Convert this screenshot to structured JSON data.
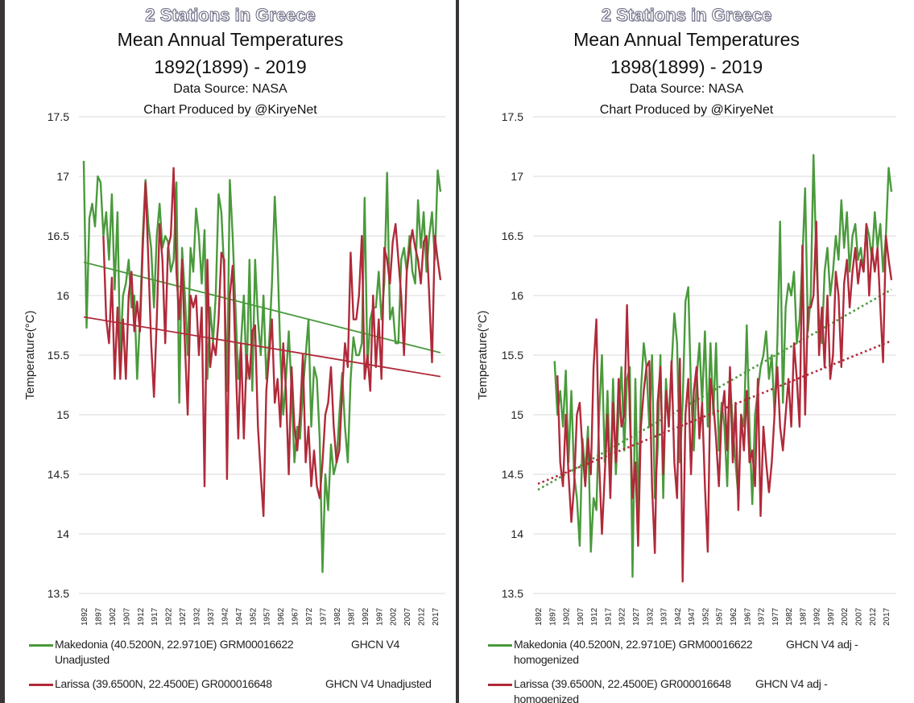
{
  "colors": {
    "makedonia": "#4a9a3c",
    "larissa": "#b02a3a",
    "grid": "#d9d9d9"
  },
  "chart_data": [
    {
      "type": "line",
      "title": "2 Stations in Greece",
      "subtitle_lines": [
        "Mean Annual Temperatures",
        "1892(1899) - 2019",
        "Data Source: NASA",
        "Chart Produced by @KiryeNet"
      ],
      "xlabel": "",
      "ylabel": "Temperature(°C)",
      "ylim": [
        13.5,
        17.5
      ],
      "yticks": [
        "13.5",
        "14",
        "14.5",
        "15",
        "15.5",
        "16",
        "16.5",
        "17",
        "17.5"
      ],
      "xticks": [
        "1892",
        "1897",
        "1902",
        "1907",
        "1912",
        "1917",
        "1922",
        "1927",
        "1932",
        "1937",
        "1942",
        "1947",
        "1952",
        "1957",
        "1962",
        "1967",
        "1972",
        "1977",
        "1982",
        "1987",
        "1992",
        "1997",
        "2002",
        "2007",
        "2012",
        "2017"
      ],
      "grid": true,
      "legend": "bottom",
      "x_range": [
        1892,
        2019
      ],
      "series": [
        {
          "name": "Makedonia (40.5200N, 22.9710E) GRM00016622",
          "name_suffix": "GHCN V4",
          "name_line2": "Unadjusted",
          "color": "#4a9a3c",
          "start_year": 1892,
          "values": [
            17.13,
            15.73,
            16.65,
            16.77,
            16.58,
            17.0,
            16.95,
            16.5,
            16.7,
            16.3,
            16.85,
            16.05,
            16.7,
            15.5,
            16.0,
            16.1,
            16.3,
            15.9,
            16.0,
            15.3,
            15.8,
            16.5,
            16.97,
            16.6,
            16.4,
            15.9,
            16.5,
            16.77,
            16.4,
            16.5,
            16.45,
            16.2,
            16.3,
            16.95,
            15.1,
            16.4,
            16.0,
            15.5,
            16.4,
            16.2,
            16.73,
            16.5,
            16.1,
            16.55,
            15.3,
            15.9,
            15.6,
            16.0,
            16.85,
            16.7,
            16.2,
            15.2,
            16.97,
            16.5,
            15.9,
            15.3,
            15.6,
            16.0,
            15.3,
            16.3,
            15.2,
            16.3,
            15.8,
            15.5,
            16.0,
            15.3,
            15.6,
            16.1,
            16.83,
            16.3,
            15.5,
            15.0,
            15.3,
            15.7,
            15.2,
            14.6,
            14.9,
            14.8,
            15.2,
            15.5,
            15.8,
            14.9,
            15.4,
            15.3,
            14.8,
            13.68,
            14.5,
            14.2,
            14.75,
            14.5,
            14.6,
            15.0,
            15.35,
            14.9,
            14.6,
            15.3,
            15.65,
            15.5,
            15.5,
            15.6,
            16.82,
            15.4,
            15.8,
            15.9,
            15.9,
            16.2,
            15.8,
            16.1,
            17.03,
            15.8,
            15.9,
            15.6,
            15.6,
            16.3,
            16.4,
            16.2,
            16.5,
            16.2,
            16.1,
            16.8,
            16.4,
            16.7,
            16.2,
            16.5,
            16.7,
            16.3,
            17.05,
            16.87
          ],
          "trend": {
            "style": "solid",
            "start": 16.28,
            "end": 15.52
          }
        },
        {
          "name": "Larissa (39.6500N, 22.4500E) GR000016648",
          "name_suffix": "GHCN V4 Unadjusted",
          "name_line2": "",
          "color": "#b02a3a",
          "start_year": 1892,
          "values": [
            null,
            null,
            null,
            null,
            null,
            null,
            null,
            16.5,
            15.8,
            15.6,
            16.15,
            15.3,
            15.9,
            15.3,
            15.8,
            15.3,
            16.0,
            16.2,
            15.7,
            15.95,
            15.7,
            16.4,
            16.95,
            16.3,
            15.6,
            15.15,
            15.8,
            16.6,
            16.3,
            15.6,
            16.4,
            16.5,
            17.07,
            16.2,
            15.8,
            16.3,
            15.6,
            15.0,
            16.0,
            15.9,
            16.0,
            15.5,
            15.9,
            14.4,
            16.3,
            15.4,
            15.6,
            15.5,
            15.8,
            16.36,
            16.3,
            14.46,
            16.0,
            16.25,
            15.5,
            14.8,
            15.6,
            14.8,
            15.5,
            15.3,
            15.7,
            15.75,
            14.9,
            14.5,
            14.15,
            15.2,
            15.5,
            15.8,
            15.1,
            15.3,
            14.9,
            15.6,
            15.2,
            14.5,
            15.4,
            14.9,
            14.7,
            15.0,
            15.5,
            14.6,
            14.9,
            14.4,
            14.7,
            14.4,
            14.3,
            14.6,
            15.0,
            15.1,
            15.4,
            14.9,
            14.6,
            14.7,
            15.2,
            15.6,
            15.4,
            16.36,
            15.8,
            15.8,
            16.0,
            16.5,
            15.3,
            15.5,
            15.2,
            16.0,
            15.4,
            15.8,
            15.3,
            16.4,
            16.3,
            16.1,
            16.45,
            16.6,
            16.3,
            16.0,
            15.5,
            16.2,
            16.4,
            16.55,
            16.4,
            16.3,
            16.1,
            16.45,
            16.5,
            16.0,
            15.44,
            16.5,
            16.3,
            16.13
          ],
          "trend": {
            "style": "solid",
            "start": 15.82,
            "end": 15.32
          }
        }
      ]
    },
    {
      "type": "line",
      "title": "2 Stations in Greece",
      "subtitle_lines": [
        "Mean Annual Temperatures",
        "1898(1899) - 2019",
        "Data Source: NASA",
        "Chart Produced by @KiryeNet"
      ],
      "xlabel": "",
      "ylabel": "Temperature(°C)",
      "ylim": [
        13.5,
        17.5
      ],
      "yticks": [
        "13.5",
        "14",
        "14.5",
        "15",
        "15.5",
        "16",
        "16.5",
        "17",
        "17.5"
      ],
      "xticks": [
        "1892",
        "1897",
        "1902",
        "1907",
        "1912",
        "1917",
        "1922",
        "1927",
        "1932",
        "1937",
        "1942",
        "1947",
        "1952",
        "1957",
        "1962",
        "1967",
        "1972",
        "1977",
        "1982",
        "1987",
        "1992",
        "1997",
        "2002",
        "2007",
        "2012",
        "2017"
      ],
      "grid": true,
      "legend": "bottom",
      "x_range": [
        1892,
        2019
      ],
      "series": [
        {
          "name": "Makedonia (40.5200N, 22.9710E) GRM00016622",
          "name_suffix": "GHCN V4 adj -",
          "name_line2": "homogenized",
          "color": "#4a9a3c",
          "start_year": 1892,
          "values": [
            null,
            null,
            null,
            null,
            null,
            null,
            15.45,
            15.0,
            15.2,
            14.9,
            15.37,
            14.6,
            15.2,
            14.5,
            14.3,
            13.9,
            14.8,
            14.5,
            14.9,
            13.85,
            14.3,
            14.2,
            15.0,
            15.5,
            14.6,
            15.2,
            14.4,
            15.3,
            14.5,
            15.0,
            15.4,
            14.7,
            15.3,
            15.4,
            13.64,
            15.3,
            14.2,
            15.2,
            15.6,
            15.4,
            14.9,
            15.5,
            14.3,
            14.7,
            15.5,
            14.3,
            15.3,
            14.9,
            15.4,
            15.85,
            15.6,
            14.6,
            15.1,
            15.95,
            16.07,
            15.2,
            14.7,
            15.3,
            15.6,
            15.1,
            15.7,
            14.9,
            15.6,
            15.0,
            15.6,
            14.7,
            15.1,
            14.9,
            14.4,
            15.3,
            14.9,
            14.6,
            14.3,
            15.0,
            14.9,
            15.75,
            14.9,
            14.25,
            15.0,
            15.2,
            15.4,
            15.5,
            15.7,
            15.3,
            15.5,
            15.0,
            15.6,
            16.62,
            15.1,
            15.9,
            16.1,
            16.0,
            16.2,
            15.6,
            15.8,
            16.3,
            16.9,
            15.7,
            16.0,
            17.18,
            16.3,
            15.8,
            15.6,
            16.2,
            16.4,
            16.0,
            16.2,
            16.5,
            16.3,
            16.8,
            16.4,
            16.7,
            16.2,
            16.5,
            16.6,
            16.3,
            16.4,
            16.2,
            16.6,
            16.5,
            16.3,
            16.7,
            16.4,
            16.6,
            16.2,
            16.5,
            17.07,
            16.87
          ],
          "trend": {
            "style": "dotted",
            "start": 14.37,
            "end": 16.05
          }
        },
        {
          "name": "Larissa (39.6500N, 22.4500E) GR000016648",
          "name_suffix": "GHCN V4 adj -",
          "name_line2": "homogenized",
          "color": "#b02a3a",
          "start_year": 1892,
          "values": [
            null,
            null,
            null,
            null,
            null,
            null,
            null,
            15.33,
            14.6,
            14.4,
            15.0,
            14.5,
            14.1,
            14.4,
            15.0,
            15.1,
            14.7,
            14.4,
            14.8,
            14.5,
            15.4,
            15.8,
            14.6,
            14.0,
            14.5,
            15.0,
            14.3,
            15.1,
            14.6,
            15.3,
            14.9,
            15.0,
            15.92,
            15.0,
            14.3,
            14.6,
            13.9,
            14.9,
            15.2,
            15.4,
            15.45,
            14.4,
            13.84,
            15.1,
            15.4,
            14.5,
            15.2,
            14.9,
            15.45,
            14.6,
            14.3,
            15.47,
            13.6,
            15.0,
            15.3,
            14.5,
            15.2,
            15.4,
            14.8,
            15.1,
            14.4,
            13.85,
            15.3,
            15.1,
            14.8,
            14.4,
            15.0,
            15.2,
            14.7,
            15.4,
            14.6,
            15.1,
            14.2,
            15.0,
            14.7,
            15.2,
            14.6,
            14.7,
            14.4,
            15.3,
            14.15,
            14.9,
            14.6,
            14.35,
            14.6,
            15.0,
            15.4,
            14.9,
            14.7,
            15.0,
            15.3,
            14.9,
            15.6,
            15.3,
            14.9,
            16.42,
            15.0,
            15.9,
            15.9,
            16.0,
            16.62,
            15.5,
            15.9,
            15.4,
            16.0,
            15.3,
            15.5,
            16.2,
            16.0,
            15.4,
            16.1,
            16.3,
            15.9,
            16.2,
            16.4,
            16.1,
            16.3,
            16.2,
            16.6,
            16.0,
            16.4,
            16.2,
            16.4,
            15.9,
            15.44,
            16.5,
            16.3,
            16.13
          ],
          "trend": {
            "style": "dotted",
            "start": 14.42,
            "end": 15.62
          }
        }
      ]
    }
  ]
}
